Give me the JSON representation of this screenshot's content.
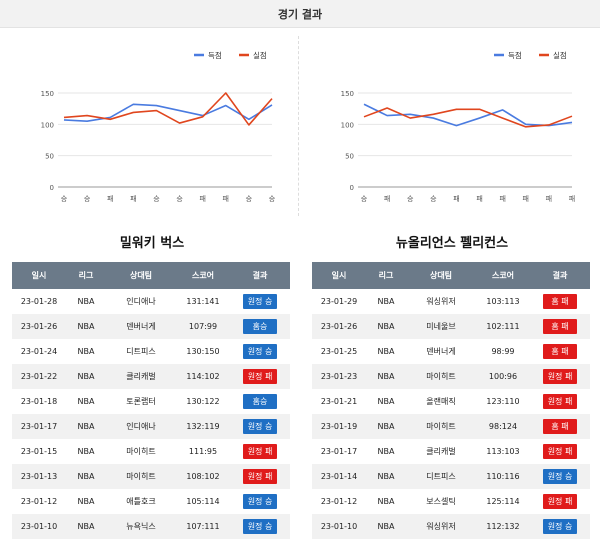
{
  "header": {
    "title": "경기 결과"
  },
  "colors": {
    "score": "#4a7be0",
    "conceded": "#e0461e",
    "win": "#1f6fc4",
    "loss": "#e01b1b",
    "header_bg": "#6b7a89"
  },
  "chart_data": [
    {
      "type": "line",
      "team": "밀워키 벅스",
      "categories": [
        "승",
        "승",
        "패",
        "패",
        "승",
        "승",
        "패",
        "패",
        "승",
        "승"
      ],
      "yticks": [
        0,
        50,
        100,
        150
      ],
      "ylim": [
        0,
        150
      ],
      "legend_position": "top-right",
      "series": [
        {
          "name": "득점",
          "color": "#4a7be0",
          "values": [
            107,
            105,
            111,
            132,
            130,
            122,
            114,
            130,
            108,
            131
          ]
        },
        {
          "name": "실점",
          "color": "#e0461e",
          "values": [
            111,
            114,
            108,
            119,
            122,
            102,
            112,
            150,
            99,
            141
          ]
        }
      ]
    },
    {
      "type": "line",
      "team": "뉴올리언스 펠리컨스",
      "categories": [
        "승",
        "패",
        "승",
        "승",
        "패",
        "패",
        "패",
        "패",
        "패",
        "패"
      ],
      "yticks": [
        0,
        50,
        100,
        150
      ],
      "ylim": [
        0,
        150
      ],
      "legend_position": "top-right",
      "series": [
        {
          "name": "득점",
          "color": "#4a7be0",
          "values": [
            132,
            114,
            116,
            110,
            98,
            110,
            123,
            100,
            98,
            103
          ]
        },
        {
          "name": "실점",
          "color": "#e0461e",
          "values": [
            112,
            126,
            110,
            116,
            124,
            124,
            110,
            96,
            99,
            113
          ]
        }
      ]
    }
  ],
  "table_headers": [
    "일시",
    "리그",
    "상대팀",
    "스코어",
    "결과"
  ],
  "left_team": {
    "name": "밀워키 벅스",
    "games": [
      {
        "date": "23-01-28",
        "league": "NBA",
        "opponent": "인디애나",
        "score": "131:141",
        "result": "원정 승",
        "win": true
      },
      {
        "date": "23-01-26",
        "league": "NBA",
        "opponent": "덴버너게",
        "score": "107:99",
        "result": "홈승",
        "win": true
      },
      {
        "date": "23-01-24",
        "league": "NBA",
        "opponent": "디트피스",
        "score": "130:150",
        "result": "원정 승",
        "win": true
      },
      {
        "date": "23-01-22",
        "league": "NBA",
        "opponent": "클리캐벌",
        "score": "114:102",
        "result": "원정 패",
        "win": false
      },
      {
        "date": "23-01-18",
        "league": "NBA",
        "opponent": "토론랩터",
        "score": "130:122",
        "result": "홈승",
        "win": true
      },
      {
        "date": "23-01-17",
        "league": "NBA",
        "opponent": "인디애나",
        "score": "132:119",
        "result": "원정 승",
        "win": true
      },
      {
        "date": "23-01-15",
        "league": "NBA",
        "opponent": "마이히트",
        "score": "111:95",
        "result": "원정 패",
        "win": false
      },
      {
        "date": "23-01-13",
        "league": "NBA",
        "opponent": "마이히트",
        "score": "108:102",
        "result": "원정 패",
        "win": false
      },
      {
        "date": "23-01-12",
        "league": "NBA",
        "opponent": "애틀호크",
        "score": "105:114",
        "result": "원정 승",
        "win": true
      },
      {
        "date": "23-01-10",
        "league": "NBA",
        "opponent": "뉴욕닉스",
        "score": "107:111",
        "result": "원정 승",
        "win": true
      }
    ]
  },
  "right_team": {
    "name": "뉴올리언스 펠리컨스",
    "games": [
      {
        "date": "23-01-29",
        "league": "NBA",
        "opponent": "워싱위저",
        "score": "103:113",
        "result": "홈 패",
        "win": false
      },
      {
        "date": "23-01-26",
        "league": "NBA",
        "opponent": "미네울브",
        "score": "102:111",
        "result": "홈 패",
        "win": false
      },
      {
        "date": "23-01-25",
        "league": "NBA",
        "opponent": "덴버너게",
        "score": "98:99",
        "result": "홈 패",
        "win": false
      },
      {
        "date": "23-01-23",
        "league": "NBA",
        "opponent": "마이히트",
        "score": "100:96",
        "result": "원정 패",
        "win": false
      },
      {
        "date": "23-01-21",
        "league": "NBA",
        "opponent": "올랜매직",
        "score": "123:110",
        "result": "원정 패",
        "win": false
      },
      {
        "date": "23-01-19",
        "league": "NBA",
        "opponent": "마이히트",
        "score": "98:124",
        "result": "홈 패",
        "win": false
      },
      {
        "date": "23-01-17",
        "league": "NBA",
        "opponent": "클리캐벌",
        "score": "113:103",
        "result": "원정 패",
        "win": false
      },
      {
        "date": "23-01-14",
        "league": "NBA",
        "opponent": "디트피스",
        "score": "110:116",
        "result": "원정 승",
        "win": true
      },
      {
        "date": "23-01-12",
        "league": "NBA",
        "opponent": "보스셀틱",
        "score": "125:114",
        "result": "원정 패",
        "win": false
      },
      {
        "date": "23-01-10",
        "league": "NBA",
        "opponent": "워싱위저",
        "score": "112:132",
        "result": "원정 승",
        "win": true
      }
    ]
  }
}
